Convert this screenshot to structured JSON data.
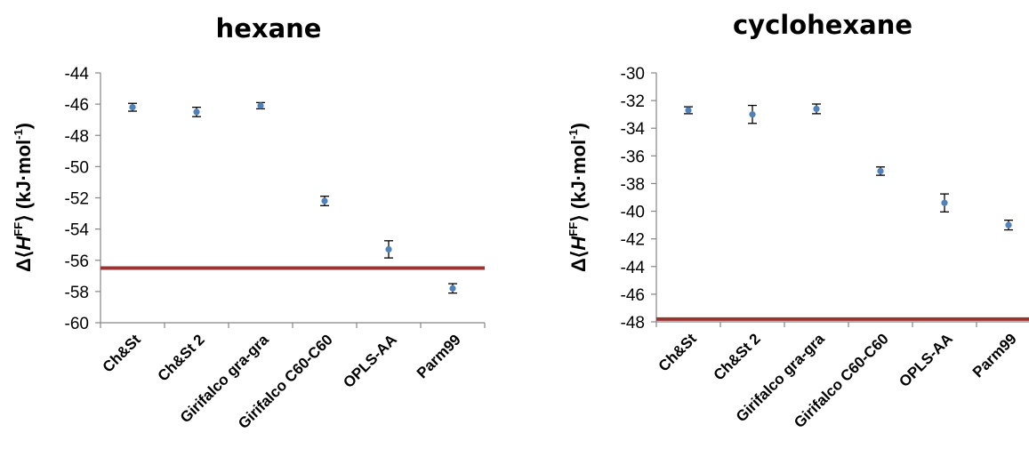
{
  "chart_data": [
    {
      "type": "scatter",
      "title": "hexane",
      "ylabel": {
        "delta": "Δ⟨",
        "H": "H",
        "FF": "FF",
        "tail": "⟩ (kJ·mol",
        "exp": "-1",
        "close": ")"
      },
      "categories": [
        "Ch&St",
        "Ch&St 2",
        "Girifalco gra-gra",
        "Girifalco C60-C60",
        "OPLS-AA",
        "Parm99"
      ],
      "values": [
        -46.2,
        -46.5,
        -46.1,
        -52.2,
        -55.3,
        -57.8
      ],
      "errors": [
        0.25,
        0.3,
        0.2,
        0.3,
        0.55,
        0.3
      ],
      "reference_line": -56.5,
      "ylim": [
        -60,
        -44
      ],
      "yticks": [
        "-44",
        "-46",
        "-48",
        "-50",
        "-52",
        "-54",
        "-56",
        "-58",
        "-60"
      ],
      "yticks_values": [
        -44,
        -46,
        -48,
        -50,
        -52,
        -54,
        -56,
        -58,
        -60
      ]
    },
    {
      "type": "scatter",
      "title": "cyclohexane",
      "ylabel": {
        "delta": "Δ⟨",
        "H": "H",
        "FF": "FF",
        "tail": "⟩ (kJ·mol",
        "exp": "-1",
        "close": ")"
      },
      "categories": [
        "Ch&St",
        "Ch&St 2",
        "Girifalco gra-gra",
        "Girifalco C60-C60",
        "OPLS-AA",
        "Parm99"
      ],
      "values": [
        -32.7,
        -33.0,
        -32.6,
        -37.1,
        -39.4,
        -41.0
      ],
      "errors": [
        0.25,
        0.65,
        0.35,
        0.3,
        0.65,
        0.35
      ],
      "reference_line": -47.8,
      "ylim": [
        -48,
        -30
      ],
      "yticks": [
        "-30",
        "-32",
        "-34",
        "-36",
        "-38",
        "-40",
        "-42",
        "-44",
        "-46",
        "-48"
      ],
      "yticks_values": [
        -30,
        -32,
        -34,
        -36,
        -38,
        -40,
        -42,
        -44,
        -46,
        -48
      ]
    }
  ],
  "colors": {
    "marker": "#4f81bd",
    "reference_line": "#9b3431",
    "axis": "#868686",
    "errorbar": "#000000"
  }
}
